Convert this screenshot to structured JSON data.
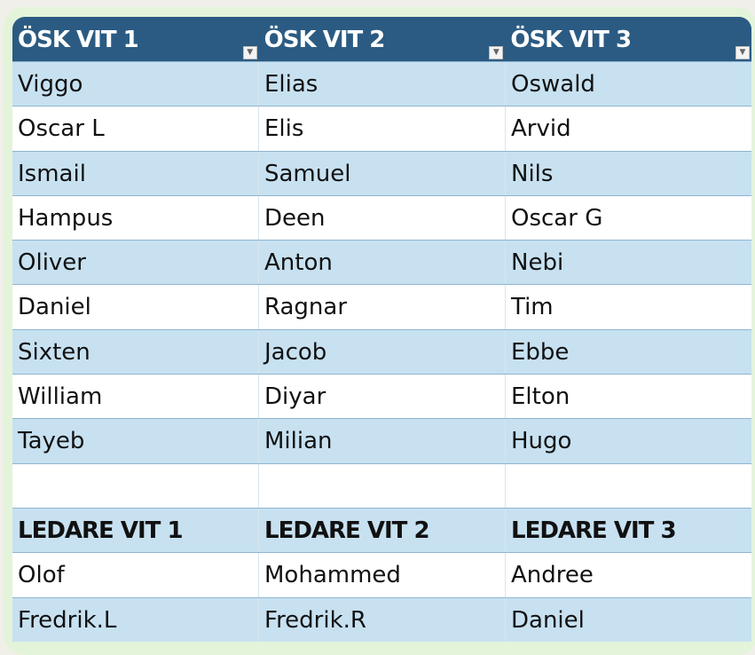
{
  "headers": [
    "ÖSK VIT 1",
    "ÖSK VIT 2",
    "ÖSK VIT 3"
  ],
  "rows": [
    [
      "Viggo",
      "Elias",
      "Oswald"
    ],
    [
      "Oscar L",
      "Elis",
      "Arvid"
    ],
    [
      "Ismail",
      "Samuel",
      "Nils"
    ],
    [
      "Hampus",
      "Deen",
      "Oscar G"
    ],
    [
      "Oliver",
      "Anton",
      "Nebi"
    ],
    [
      "Daniel",
      "Ragnar",
      "Tim"
    ],
    [
      "Sixten",
      "Jacob",
      "Ebbe"
    ],
    [
      "William",
      "Diyar",
      "Elton"
    ],
    [
      "Tayeb",
      "Milian",
      "Hugo"
    ],
    [
      "",
      "",
      ""
    ],
    [
      "LEDARE VIT 1",
      "LEDARE VIT 2",
      "LEDARE VIT 3"
    ],
    [
      "Olof",
      "Mohammed",
      "Andree"
    ],
    [
      "Fredrik.L",
      "Fredrik.R",
      "Daniel"
    ]
  ],
  "colors": {
    "header": "#2b5b82",
    "band": "#c7e1f1",
    "panel": "#e4f4da"
  }
}
